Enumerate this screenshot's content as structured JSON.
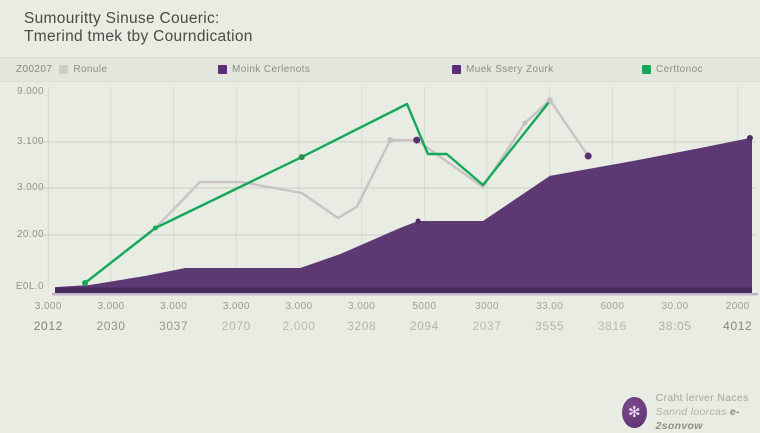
{
  "header": {
    "title_line1": "Sumouritty Sinuse Coueric:",
    "title_line2": "Tmerind tmek tby Courndication"
  },
  "legend": {
    "prefix": "Z00207",
    "items": [
      {
        "label": "Ronule",
        "color": "#cdcdc6"
      },
      {
        "label": "Moink Cerlenots",
        "color": "#5c2d74"
      },
      {
        "label": "Muek Ssery Zourk",
        "color": "#5c2d74"
      },
      {
        "label": "Certtonoc",
        "color": "#16a85a"
      }
    ]
  },
  "chart_data": {
    "type": "area+line combo",
    "coords": "normalized: x 0-1 left to right, y 0-1 bottom to top of plot area",
    "y_ticks": [
      "9.000",
      "3.100",
      "3.000",
      "20.00",
      "E0L.0"
    ],
    "x_ticks_row1": [
      "3.000",
      "3.000",
      "3.000",
      "3.000",
      "3.000",
      "3.000",
      "5000",
      "3000",
      "33.00",
      "6000",
      "30.00",
      "2000"
    ],
    "x_ticks_row1_opacity": [
      0.9,
      0.9,
      0.9,
      0.9,
      0.85,
      0.8,
      0.85,
      0.8,
      0.75,
      0.8,
      0.8,
      0.85
    ],
    "x_ticks_row2": [
      "2012",
      "2030",
      "3037",
      "2070",
      "2.000",
      "3208",
      "2094",
      "2037",
      "3555",
      "3816",
      "38:05",
      "4012"
    ],
    "x_ticks_row2_opacity": [
      0.95,
      0.8,
      0.75,
      0.5,
      0.45,
      0.5,
      0.5,
      0.45,
      0.5,
      0.45,
      0.55,
      0.9
    ],
    "series": [
      {
        "name": "Moink Cerlenots",
        "type": "area",
        "color": "#5d3973",
        "band_color": "#482a5c",
        "underline_color": "#b3a2c1",
        "points": [
          [
            0.0,
            0.029
          ],
          [
            0.05,
            0.039
          ],
          [
            0.129,
            0.083
          ],
          [
            0.187,
            0.122
          ],
          [
            0.352,
            0.122
          ],
          [
            0.409,
            0.19
          ],
          [
            0.495,
            0.317
          ],
          [
            0.521,
            0.351
          ],
          [
            0.614,
            0.351
          ],
          [
            0.71,
            0.571
          ],
          [
            0.829,
            0.644
          ],
          [
            0.925,
            0.707
          ],
          [
            0.997,
            0.756
          ]
        ]
      },
      {
        "name": "Muek Ssery Zourk",
        "type": "line",
        "color": "#c9c3c3",
        "points": [
          [
            0.144,
            0.317
          ],
          [
            0.208,
            0.541
          ],
          [
            0.268,
            0.541
          ],
          [
            0.354,
            0.488
          ],
          [
            0.406,
            0.366
          ],
          [
            0.433,
            0.42
          ],
          [
            0.481,
            0.746
          ],
          [
            0.519,
            0.746
          ],
          [
            0.614,
            0.517
          ],
          [
            0.674,
            0.829
          ],
          [
            0.71,
            0.941
          ],
          [
            0.765,
            0.668
          ]
        ]
      },
      {
        "name": "Certtonoc",
        "type": "line",
        "color": "#16a85a",
        "points": [
          [
            0.043,
            0.049
          ],
          [
            0.144,
            0.317
          ],
          [
            0.354,
            0.663
          ],
          [
            0.505,
            0.922
          ],
          [
            0.535,
            0.678
          ],
          [
            0.562,
            0.678
          ],
          [
            0.614,
            0.527
          ],
          [
            0.709,
            0.932
          ]
        ]
      }
    ],
    "markers": [
      {
        "color": "#16a85a",
        "pt": [
          0.043,
          0.049
        ],
        "r": 3
      },
      {
        "color": "#16a85a",
        "pt": [
          0.144,
          0.317
        ],
        "r": 2.5
      },
      {
        "color": "#2f8e53",
        "pt": [
          0.354,
          0.663
        ],
        "r": 3
      },
      {
        "color": "#c6bfc0",
        "pt": [
          0.481,
          0.746
        ],
        "r": 3
      },
      {
        "color": "#5a2f70",
        "pt": [
          0.519,
          0.746
        ],
        "r": 3.5
      },
      {
        "color": "#c6bfc0",
        "pt": [
          0.674,
          0.829
        ],
        "r": 2.5
      },
      {
        "color": "#c6bfc0",
        "pt": [
          0.71,
          0.941
        ],
        "r": 3
      },
      {
        "color": "#5a2f70",
        "pt": [
          0.765,
          0.668
        ],
        "r": 3.5
      },
      {
        "color": "#4f2b62",
        "pt": [
          0.521,
          0.351
        ],
        "r": 2.5
      },
      {
        "color": "#4f2b62",
        "pt": [
          0.997,
          0.756
        ],
        "r": 3
      }
    ],
    "gridlines": {
      "h_norm": [
        0.737,
        0.512,
        0.283
      ],
      "v_at_ticks": true
    },
    "legend_position": "top",
    "grid": "faint"
  },
  "footer": {
    "logo_glyph": "✻",
    "line1": "Craht lerver Naces",
    "line2_a": "Sannd loorcas ",
    "line2_b": "e-2sonvow"
  }
}
